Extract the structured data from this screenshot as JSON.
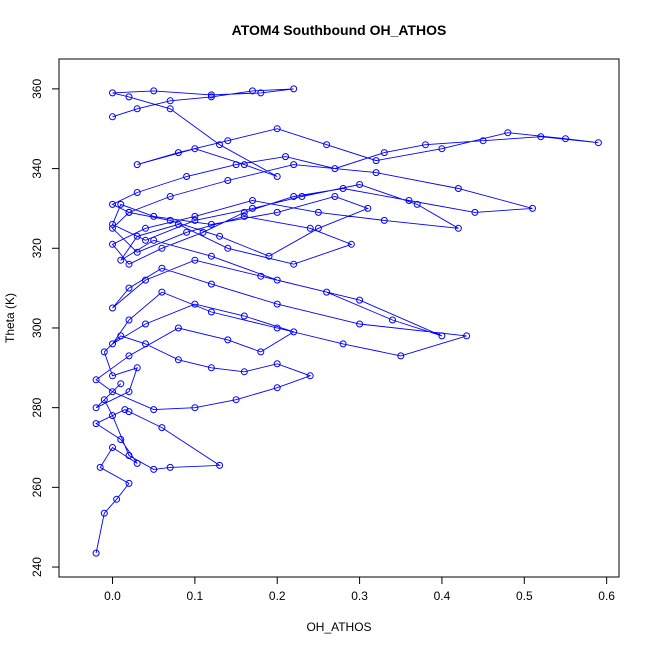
{
  "chart_data": {
    "type": "scatter",
    "title": "ATOM4 Southbound OH_ATHOS",
    "xlabel": "OH_ATHOS",
    "ylabel": "Theta (K)",
    "xlim": [
      -0.065,
      0.615
    ],
    "ylim": [
      237.5,
      367.5
    ],
    "x_ticks": [
      0.0,
      0.1,
      0.2,
      0.3,
      0.4,
      0.5,
      0.6
    ],
    "x_tick_labels": [
      "0.0",
      "0.1",
      "0.2",
      "0.3",
      "0.4",
      "0.5",
      "0.6"
    ],
    "y_ticks": [
      240,
      260,
      280,
      300,
      320,
      340,
      360
    ],
    "y_tick_labels": [
      "240",
      "260",
      "280",
      "300",
      "320",
      "340",
      "360"
    ],
    "grid": false,
    "legend": "none",
    "style": "points-and-lines",
    "series": [
      {
        "color": "#0000ff",
        "x": [
          -0.02,
          -0.01,
          0.005,
          0.02,
          -0.015,
          0.0,
          0.03,
          0.01,
          -0.02,
          0.015,
          0.02,
          0.06,
          0.13,
          0.07,
          0.05,
          0.02,
          0.0,
          -0.01,
          0.01,
          -0.02,
          0.02,
          0.03,
          0.0,
          -0.01,
          0.01,
          0.04,
          0.08,
          0.12,
          0.16,
          0.2,
          0.24,
          0.2,
          0.15,
          0.1,
          0.05,
          0.0,
          -0.02,
          0.02,
          0.08,
          0.14,
          0.18,
          0.22,
          0.16,
          0.1,
          0.04,
          0.0,
          0.02,
          0.06,
          0.12,
          0.2,
          0.28,
          0.35,
          0.43,
          0.3,
          0.2,
          0.12,
          0.06,
          0.02,
          0.0,
          0.04,
          0.1,
          0.18,
          0.26,
          0.34,
          0.4,
          0.3,
          0.2,
          0.12,
          0.05,
          0.01,
          0.03,
          0.08,
          0.14,
          0.22,
          0.29,
          0.24,
          0.16,
          0.09,
          0.03,
          0.0,
          0.02,
          0.07,
          0.13,
          0.19,
          0.25,
          0.31,
          0.27,
          0.2,
          0.12,
          0.05,
          0.01,
          0.0,
          0.04,
          0.1,
          0.17,
          0.23,
          0.3,
          0.37,
          0.42,
          0.33,
          0.25,
          0.17,
          0.1,
          0.04,
          0.0,
          0.02,
          0.06,
          0.11,
          0.16,
          0.22,
          0.28,
          0.36,
          0.44,
          0.51,
          0.42,
          0.32,
          0.22,
          0.14,
          0.07,
          0.02,
          0.0,
          0.03,
          0.09,
          0.15,
          0.21,
          0.27,
          0.33,
          0.38,
          0.45,
          0.52,
          0.59,
          0.55,
          0.48,
          0.4,
          0.32,
          0.26,
          0.2,
          0.14,
          0.08,
          0.03,
          0.1,
          0.16,
          0.2,
          0.13,
          0.07,
          0.02,
          0.0,
          0.05,
          0.12,
          0.18,
          0.22,
          0.17,
          0.12,
          0.07,
          0.03,
          0.0
        ],
        "y": [
          243.5,
          253.5,
          257,
          261,
          265,
          270,
          266,
          272,
          276,
          279.5,
          279,
          275,
          265.5,
          265,
          264.5,
          268,
          278,
          282,
          286,
          280,
          284,
          290,
          288,
          294,
          298,
          296,
          292,
          290,
          289,
          291,
          288,
          285,
          282,
          280,
          279.5,
          284,
          287,
          293,
          300,
          297,
          294,
          299,
          303,
          306,
          301,
          296,
          302,
          309,
          304,
          300,
          296,
          293,
          298,
          301,
          306,
          311,
          315,
          310,
          305,
          312,
          317,
          313,
          309,
          302,
          298,
          307,
          312,
          318,
          322,
          317,
          323,
          326,
          320,
          316,
          321,
          325,
          328,
          324,
          319,
          325,
          329,
          327,
          323,
          318,
          325,
          330,
          333,
          329,
          326,
          328,
          331,
          326,
          322,
          327,
          330,
          333,
          336,
          331,
          325,
          327,
          329,
          332,
          328,
          325,
          321,
          316,
          320,
          324,
          329,
          333,
          335,
          332,
          329,
          330,
          335,
          339,
          341,
          337,
          333,
          329,
          331,
          334,
          338,
          341,
          343,
          340,
          344,
          346,
          347,
          348,
          346.5,
          347.5,
          349,
          345,
          342,
          346,
          350,
          347,
          344,
          341,
          345,
          341,
          338,
          346,
          355,
          358,
          359,
          359.5,
          358.5,
          359,
          360,
          359.5,
          358,
          357,
          355,
          353
        ]
      }
    ]
  }
}
